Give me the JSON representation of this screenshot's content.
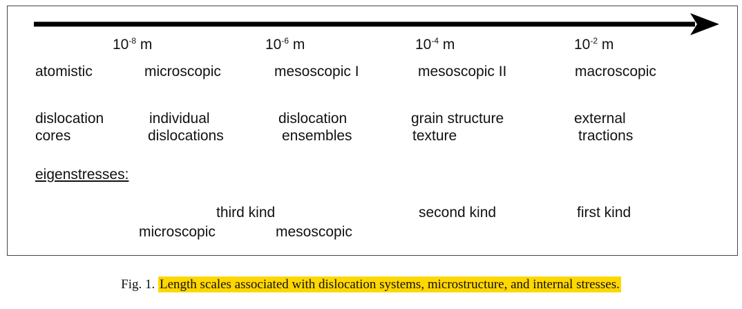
{
  "scales": [
    {
      "base": "10",
      "exp": "-8",
      "unit": "m"
    },
    {
      "base": "10",
      "exp": "-6",
      "unit": "m"
    },
    {
      "base": "10",
      "exp": "-4",
      "unit": "m"
    },
    {
      "base": "10",
      "exp": "-2",
      "unit": "m"
    }
  ],
  "levels": [
    "atomistic",
    "microscopic",
    "mesoscopic I",
    "mesoscopic II",
    "macroscopic"
  ],
  "structures": [
    {
      "line1": "dislocation",
      "line2": "cores"
    },
    {
      "line1": "individual",
      "line2": "dislocations"
    },
    {
      "line1": "dislocation",
      "line2": "ensembles"
    },
    {
      "line1": "grain structure",
      "line2": "texture"
    },
    {
      "line1": "external",
      "line2": "tractions"
    }
  ],
  "eigen": {
    "heading": "eigenstresses:",
    "third_kind": "third kind",
    "third_micro": "microscopic",
    "third_meso": "mesoscopic",
    "second_kind": "second kind",
    "first_kind": "first kind"
  },
  "caption": {
    "label": "Fig. 1.",
    "text": "Length scales associated with dislocation systems, microstructure, and internal stresses."
  },
  "colors": {
    "highlight": "#ffd700",
    "ink": "#111111"
  }
}
